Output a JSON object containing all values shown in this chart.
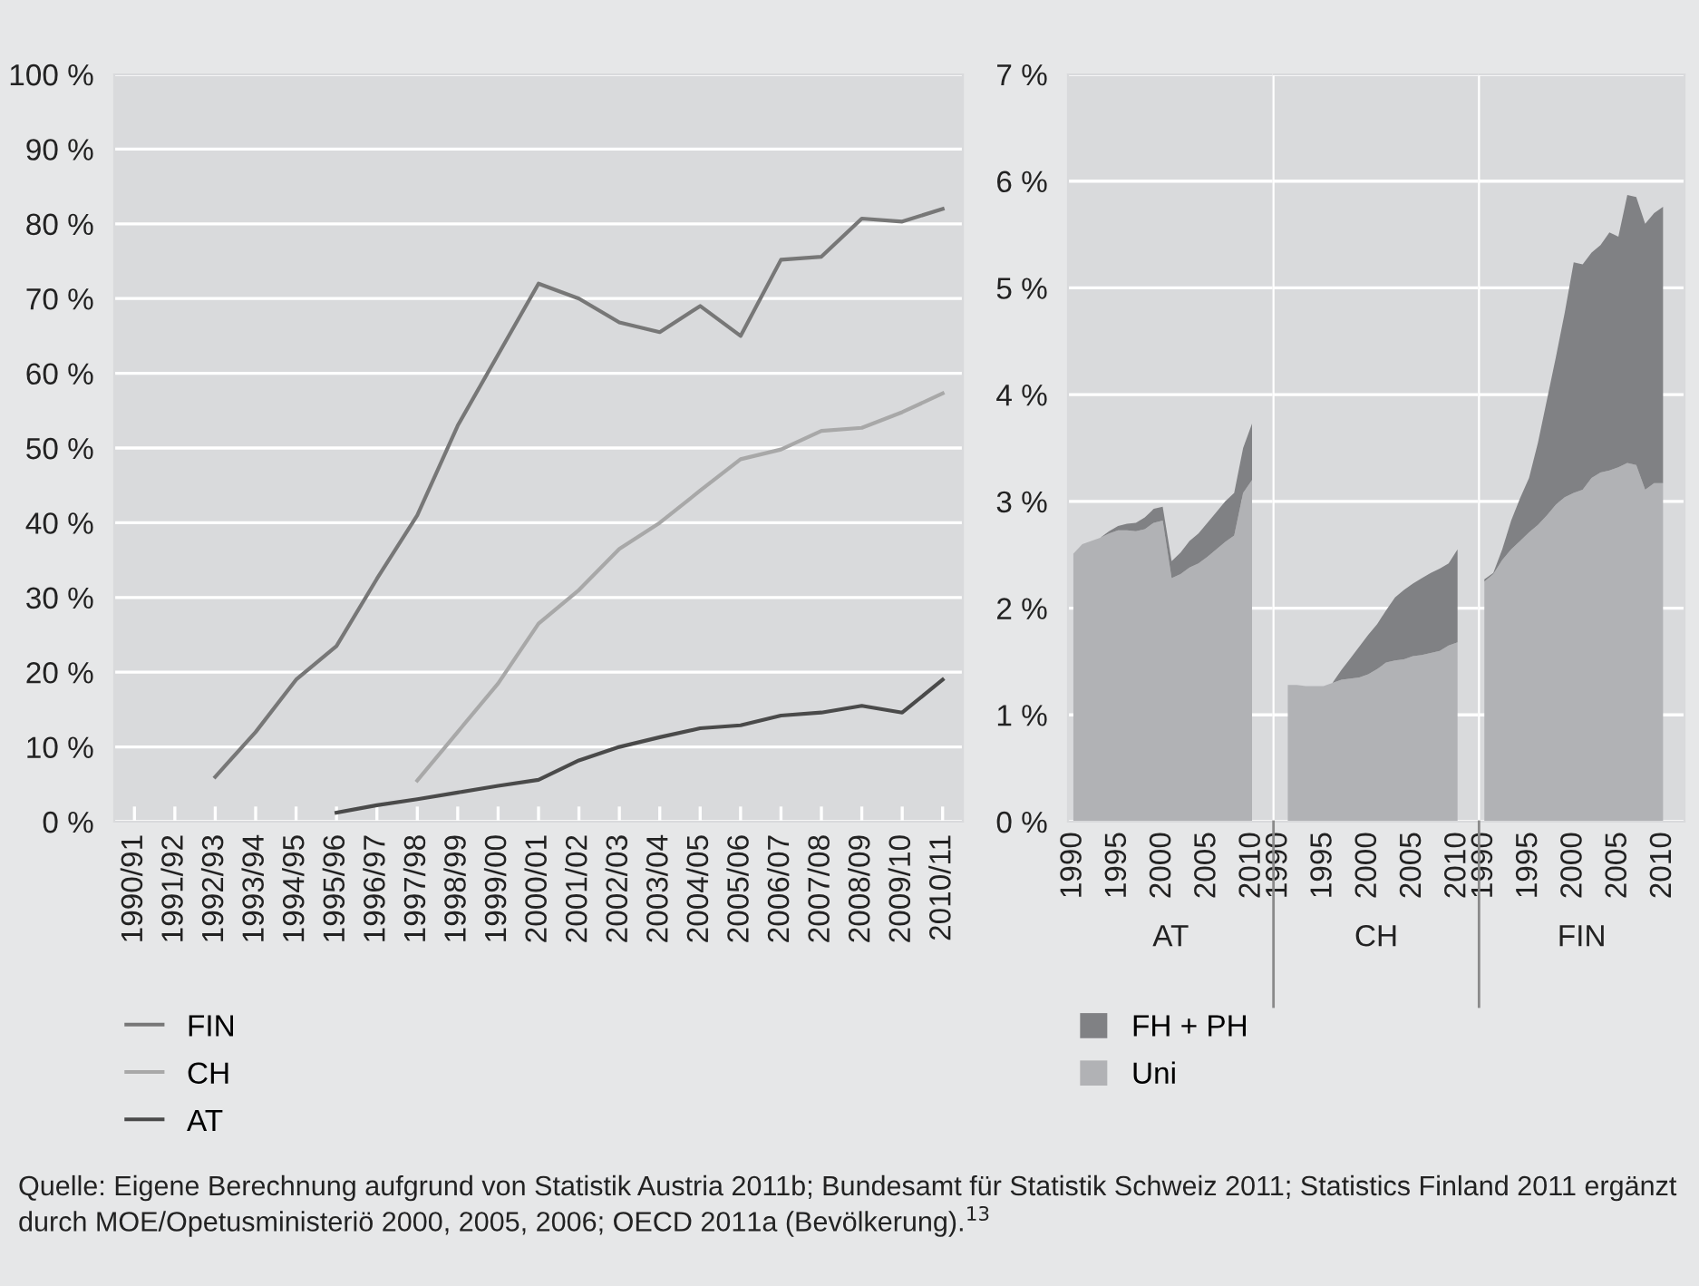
{
  "chart_data": [
    {
      "type": "line",
      "categories": [
        "1990/91",
        "1991/92",
        "1992/93",
        "1993/94",
        "1994/95",
        "1995/96",
        "1996/97",
        "1997/98",
        "1998/99",
        "1999/00",
        "2000/01",
        "2001/02",
        "2002/03",
        "2003/04",
        "2004/05",
        "2005/06",
        "2006/07",
        "2007/08",
        "2008/09",
        "2009/10",
        "2010/11"
      ],
      "series": [
        {
          "name": "FIN",
          "color": "#777777",
          "values": [
            null,
            null,
            6,
            12,
            19,
            23.5,
            32.5,
            41,
            53,
            62.5,
            72,
            70,
            66.8,
            65.5,
            69,
            65,
            75.2,
            75.6,
            80.7,
            80.3,
            82
          ]
        },
        {
          "name": "CH",
          "color": "#a8a8a8",
          "values": [
            null,
            null,
            null,
            null,
            null,
            null,
            null,
            5.5,
            12,
            18.5,
            26.5,
            31,
            36.5,
            40,
            44.3,
            48.5,
            49.8,
            52.3,
            52.7,
            54.8,
            57.3
          ]
        },
        {
          "name": "AT",
          "color": "#4a4a4a",
          "values": [
            null,
            null,
            null,
            null,
            null,
            1.2,
            2.2,
            3,
            3.9,
            4.8,
            5.6,
            8.2,
            10,
            11.3,
            12.5,
            12.9,
            14.2,
            14.6,
            15.5,
            14.6,
            19
          ]
        }
      ],
      "ylim": [
        0,
        100
      ],
      "yticks": [
        {
          "value": 0,
          "label": "0 %"
        },
        {
          "value": 10,
          "label": "10 %"
        },
        {
          "value": 20,
          "label": "20 %"
        },
        {
          "value": 30,
          "label": "30 %"
        },
        {
          "value": 40,
          "label": "40 %"
        },
        {
          "value": 50,
          "label": "50 %"
        },
        {
          "value": 60,
          "label": "60 %"
        },
        {
          "value": 70,
          "label": "70 %"
        },
        {
          "value": 80,
          "label": "80 %"
        },
        {
          "value": 90,
          "label": "90 %"
        },
        {
          "value": 100,
          "label": "100 %"
        }
      ],
      "grid": "y",
      "legend": "bottom left",
      "line_style": "solid",
      "annotations": [
        "Quelle: Eigene Berechnung aufgrund von Statistik Austria 2011b; Bundesamt für Statistik Schweiz 2011; Statistics Finland 2011 ergänzt durch MOE/Opetusministeriö 2000, 2005, 2006; OECD 2011a (Bevölkerung).$^{13}$"
      ]
    },
    {
      "type": "area",
      "stacked": true,
      "xlabel": "AT",
      "x": [
        1990,
        1991,
        1992,
        1993,
        1994,
        1995,
        1996,
        1997,
        1998,
        1999,
        2000,
        2001,
        2002,
        2003,
        2004,
        2005,
        2006,
        2007,
        2008,
        2009,
        2010
      ],
      "series": [
        {
          "name": "Uni",
          "color": "#b1b2b5",
          "values": [
            2.51,
            2.6,
            2.63,
            2.66,
            2.7,
            2.73,
            2.73,
            2.72,
            2.74,
            2.8,
            2.82,
            2.28,
            2.32,
            2.38,
            2.42,
            2.48,
            2.55,
            2.62,
            2.68,
            3.08,
            3.2
          ]
        },
        {
          "name": "FH + PH",
          "color": "#808184",
          "values": [
            0,
            0,
            0,
            0,
            0.02,
            0.04,
            0.06,
            0.08,
            0.11,
            0.13,
            0.13,
            0.16,
            0.2,
            0.25,
            0.28,
            0.32,
            0.35,
            0.38,
            0.4,
            0.42,
            0.53
          ]
        }
      ],
      "xlim": [
        1989.4,
        2012.4
      ],
      "xticks": [
        1990,
        1995,
        2000,
        2005,
        2010
      ],
      "ylim": [
        0,
        7
      ],
      "yticks": [
        {
          "value": 0,
          "label": "0 %"
        },
        {
          "value": 1,
          "label": "1 %"
        },
        {
          "value": 2,
          "label": "2 %"
        },
        {
          "value": 3,
          "label": "3 %"
        },
        {
          "value": 4,
          "label": "4 %"
        },
        {
          "value": 5,
          "label": "5 %"
        },
        {
          "value": 6,
          "label": "6 %"
        },
        {
          "value": 7,
          "label": "7 %"
        }
      ],
      "grid": "y",
      "legend": "bottom"
    },
    {
      "type": "area",
      "stacked": true,
      "xlabel": "CH",
      "x": [
        1991,
        1992,
        1993,
        1994,
        1995,
        1996,
        1997,
        1998,
        1999,
        2000,
        2001,
        2002,
        2003,
        2004,
        2005,
        2006,
        2007,
        2008,
        2009,
        2010
      ],
      "series": [
        {
          "color": "#b1b2b5",
          "values": [
            1.28,
            1.28,
            1.27,
            1.27,
            1.27,
            1.3,
            1.33,
            1.34,
            1.35,
            1.38,
            1.43,
            1.49,
            1.51,
            1.52,
            1.55,
            1.56,
            1.58,
            1.6,
            1.65,
            1.68
          ]
        },
        {
          "color": "#808184",
          "values": [
            0,
            0,
            0,
            0,
            0,
            0,
            0.09,
            0.19,
            0.29,
            0.37,
            0.42,
            0.49,
            0.59,
            0.65,
            0.68,
            0.72,
            0.75,
            0.77,
            0.77,
            0.87
          ]
        }
      ],
      "xlim": [
        1989.4,
        2012.4
      ],
      "xticks": [
        1990,
        1995,
        2000,
        2005,
        2010
      ],
      "ylim": [
        0,
        7
      ],
      "grid": "y",
      "tick_labels": "x"
    },
    {
      "type": "area",
      "stacked": true,
      "xlabel": "FIN",
      "x": [
        1990,
        1991,
        1992,
        1993,
        1994,
        1995,
        1996,
        1997,
        1998,
        1999,
        2000,
        2001,
        2002,
        2003,
        2004,
        2005,
        2006,
        2007,
        2008,
        2009,
        2010
      ],
      "series": [
        {
          "color": "#b1b2b5",
          "values": [
            2.25,
            2.32,
            2.45,
            2.55,
            2.63,
            2.71,
            2.78,
            2.87,
            2.97,
            3.04,
            3.08,
            3.11,
            3.22,
            3.27,
            3.29,
            3.32,
            3.36,
            3.34,
            3.11,
            3.17,
            3.17
          ]
        },
        {
          "color": "#808184",
          "values": [
            0.02,
            0.01,
            0.1,
            0.27,
            0.4,
            0.51,
            0.77,
            1.08,
            1.38,
            1.73,
            2.16,
            2.11,
            2.11,
            2.13,
            2.23,
            2.16,
            2.51,
            2.51,
            2.49,
            2.53,
            2.59
          ]
        }
      ],
      "xlim": [
        1989.4,
        2012.4
      ],
      "xticks": [
        1990,
        1995,
        2000,
        2005,
        2010
      ],
      "ylim": [
        0,
        7
      ],
      "grid": "y",
      "tick_labels": "x"
    }
  ]
}
